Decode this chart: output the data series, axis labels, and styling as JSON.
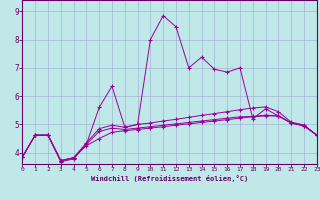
{
  "xlabel": "Windchill (Refroidissement éolien,°C)",
  "bg_color": "#c0e8e8",
  "line_color": "#990099",
  "grid_color": "#99aacc",
  "axis_color": "#660066",
  "xlim": [
    0,
    23
  ],
  "ylim": [
    3.6,
    9.4
  ],
  "xticks": [
    0,
    1,
    2,
    3,
    4,
    5,
    6,
    7,
    8,
    9,
    10,
    11,
    12,
    13,
    14,
    15,
    16,
    17,
    18,
    19,
    20,
    21,
    22,
    23
  ],
  "yticks": [
    4,
    5,
    6,
    7,
    8,
    9
  ],
  "lines": [
    [
      3.85,
      4.62,
      4.62,
      3.68,
      3.78,
      4.3,
      5.6,
      6.35,
      4.9,
      5.0,
      8.0,
      8.85,
      8.45,
      7.0,
      7.38,
      6.95,
      6.85,
      7.0,
      5.2,
      5.55,
      5.3,
      5.05,
      4.95,
      4.62
    ],
    [
      3.85,
      4.62,
      4.62,
      3.72,
      3.82,
      4.35,
      4.85,
      4.97,
      4.9,
      5.0,
      5.05,
      5.12,
      5.18,
      5.25,
      5.32,
      5.38,
      5.45,
      5.52,
      5.58,
      5.62,
      5.45,
      5.08,
      4.98,
      4.62
    ],
    [
      3.85,
      4.62,
      4.62,
      3.72,
      3.82,
      4.3,
      4.75,
      4.87,
      4.82,
      4.87,
      4.92,
      4.97,
      5.02,
      5.07,
      5.12,
      5.17,
      5.22,
      5.27,
      5.28,
      5.33,
      5.3,
      5.05,
      4.95,
      4.62
    ],
    [
      3.85,
      4.62,
      4.62,
      3.72,
      3.82,
      4.25,
      4.5,
      4.72,
      4.78,
      4.82,
      4.87,
      4.92,
      4.97,
      5.02,
      5.07,
      5.12,
      5.17,
      5.22,
      5.27,
      5.3,
      5.3,
      5.05,
      4.95,
      4.62
    ]
  ]
}
